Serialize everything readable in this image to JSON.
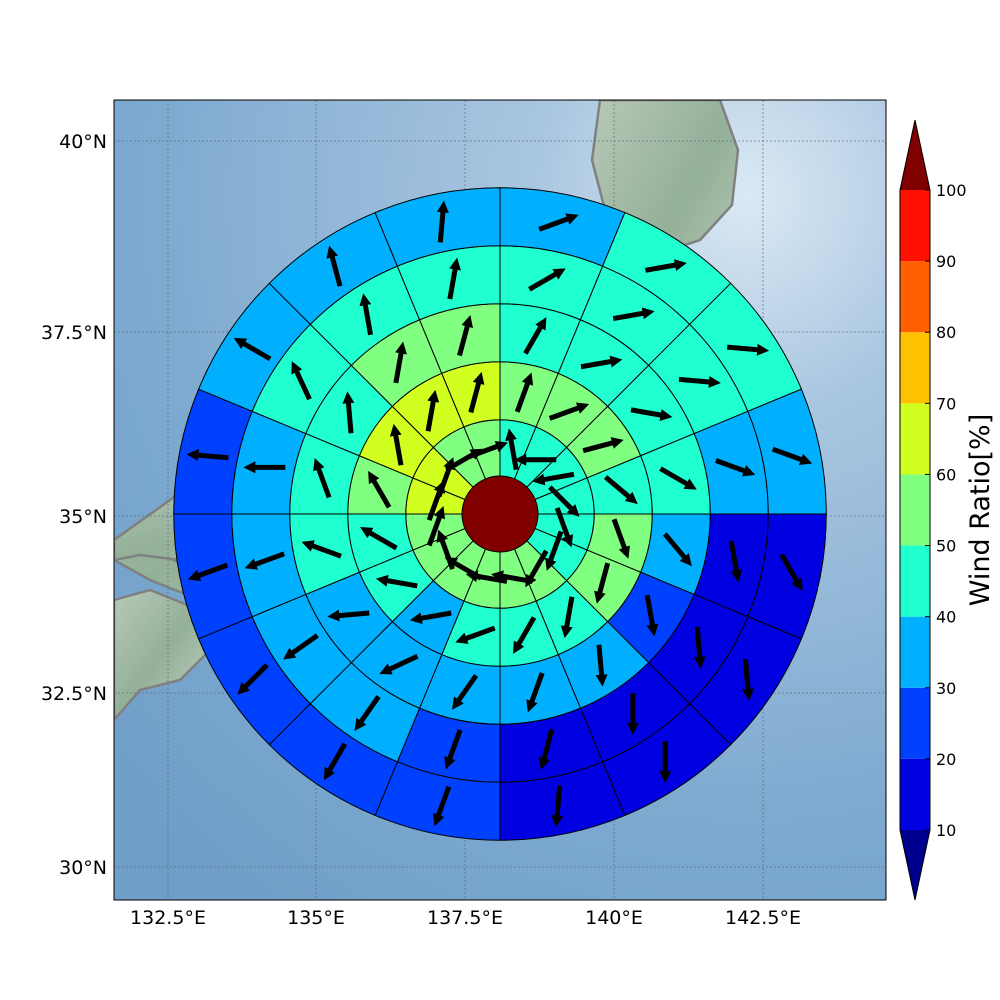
{
  "figure": {
    "lat_ticks": [
      "40°N",
      "37.5°N",
      "35°N",
      "32.5°N",
      "30°N"
    ],
    "lon_ticks": [
      "132.5°E",
      "135°E",
      "137.5°E",
      "140°E",
      "142.5°E"
    ]
  },
  "colorbar": {
    "label": "Wind Ratio[%]",
    "ticks": [
      "10",
      "20",
      "30",
      "40",
      "50",
      "60",
      "70",
      "80",
      "90",
      "100"
    ],
    "colors": [
      "#00008f",
      "#0000e0",
      "#0040ff",
      "#00b0ff",
      "#20ffd0",
      "#80ff80",
      "#d0ff20",
      "#ffc000",
      "#ff6000",
      "#ff1000",
      "#800000"
    ]
  },
  "chart_data": {
    "type": "polar-sector-map",
    "center": {
      "lat": 35.0,
      "lon": 138.0
    },
    "ring_edges_deg": [
      0.5,
      1.3,
      2.1,
      2.9,
      3.7,
      4.5
    ],
    "sector_count": 16,
    "sector_order": "clockwise from north",
    "value_bin_edges": [
      10,
      20,
      30,
      40,
      50,
      60,
      70,
      80,
      90,
      100
    ],
    "center_value": 100,
    "rings": [
      {
        "ratio": [
          40,
          40,
          40,
          40,
          40,
          40,
          50,
          50,
          50,
          50,
          50,
          50,
          60,
          60,
          50,
          50
        ],
        "wind_dir_deg": [
          350,
          270,
          260,
          135,
          160,
          200,
          210,
          280,
          280,
          300,
          340,
          20,
          20,
          20,
          60,
          70
        ]
      },
      {
        "ratio": [
          50,
          50,
          50,
          40,
          50,
          50,
          40,
          40,
          40,
          30,
          40,
          40,
          50,
          60,
          60,
          60
        ],
        "wind_dir_deg": [
          20,
          70,
          75,
          130,
          160,
          195,
          190,
          210,
          250,
          260,
          280,
          300,
          330,
          350,
          10,
          15
        ]
      },
      {
        "ratio": [
          40,
          40,
          40,
          40,
          30,
          20,
          30,
          30,
          30,
          30,
          30,
          40,
          40,
          40,
          50,
          50
        ],
        "wind_dir_deg": [
          30,
          80,
          100,
          120,
          140,
          170,
          175,
          200,
          215,
          245,
          265,
          290,
          340,
          355,
          10,
          15
        ]
      },
      {
        "ratio": [
          40,
          40,
          40,
          30,
          10,
          10,
          10,
          10,
          20,
          30,
          30,
          30,
          30,
          40,
          40,
          40
        ],
        "wind_dir_deg": [
          60,
          80,
          95,
          110,
          170,
          175,
          180,
          195,
          200,
          215,
          235,
          250,
          270,
          335,
          350,
          10
        ]
      },
      {
        "ratio": [
          30,
          40,
          40,
          30,
          10,
          10,
          10,
          10,
          20,
          20,
          20,
          20,
          20,
          30,
          30,
          30
        ],
        "wind_dir_deg": [
          70,
          80,
          95,
          110,
          150,
          175,
          180,
          185,
          200,
          210,
          225,
          250,
          275,
          300,
          345,
          5
        ]
      }
    ]
  }
}
